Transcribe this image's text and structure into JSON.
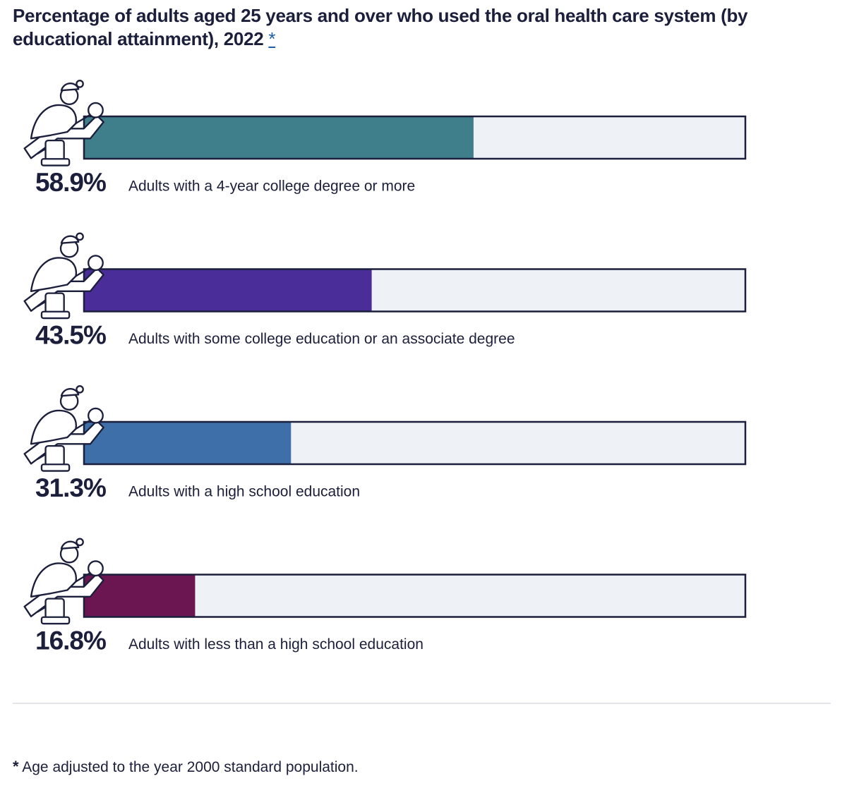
{
  "chart_data": {
    "type": "bar",
    "title": "Percentage of adults aged 25 years and over who used the oral health care system (by educational attainment), 2022",
    "title_marker": "*",
    "categories": [
      "Adults with a 4-year college degree or more",
      "Adults with some college education or an associate degree",
      "Adults with a high school education",
      "Adults with less than a high school education"
    ],
    "values": [
      58.9,
      43.5,
      31.3,
      16.8
    ],
    "value_labels": [
      "58.9%",
      "43.5%",
      "31.3%",
      "16.8%"
    ],
    "colors": [
      "#3f7f8b",
      "#4b2d99",
      "#3e6fa8",
      "#6b1650"
    ],
    "xlim": [
      0,
      100
    ],
    "footnote": {
      "marker": "*",
      "text": "Age adjusted to the year 2000 standard population."
    }
  }
}
